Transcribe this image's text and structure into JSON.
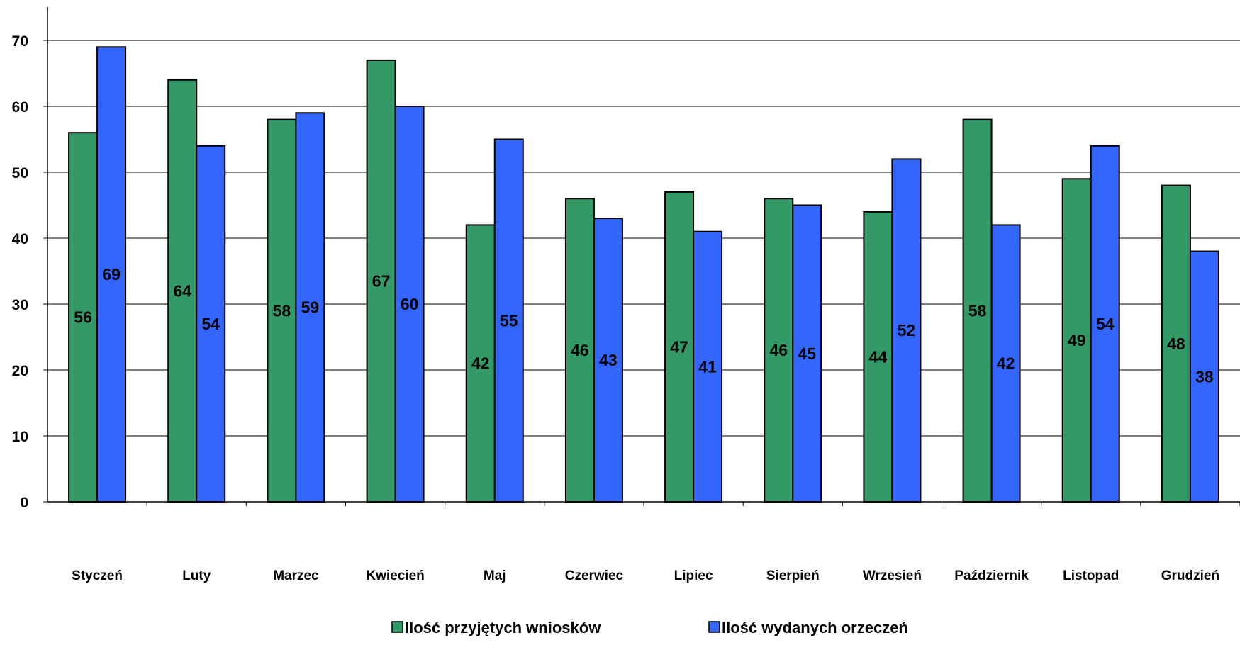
{
  "chart_data": {
    "type": "bar",
    "categories": [
      "Styczeń",
      "Luty",
      "Marzec",
      "Kwiecień",
      "Maj",
      "Czerwiec",
      "Lipiec",
      "Sierpień",
      "Wrzesień",
      "Październik",
      "Listopad",
      "Grudzień"
    ],
    "series": [
      {
        "name": "Ilość przyjętych wniosków",
        "color": "#339966",
        "values": [
          56,
          64,
          58,
          67,
          42,
          46,
          47,
          46,
          44,
          58,
          49,
          48
        ]
      },
      {
        "name": "Ilość wydanych orzeczeń",
        "color": "#3366FF",
        "values": [
          69,
          54,
          59,
          60,
          55,
          43,
          41,
          45,
          52,
          42,
          54,
          38
        ]
      }
    ],
    "ylim": [
      0,
      70
    ],
    "yticks": [
      0,
      10,
      20,
      30,
      40,
      50,
      60,
      70
    ],
    "grid": true,
    "legend": "bottom",
    "data_labels": true
  }
}
